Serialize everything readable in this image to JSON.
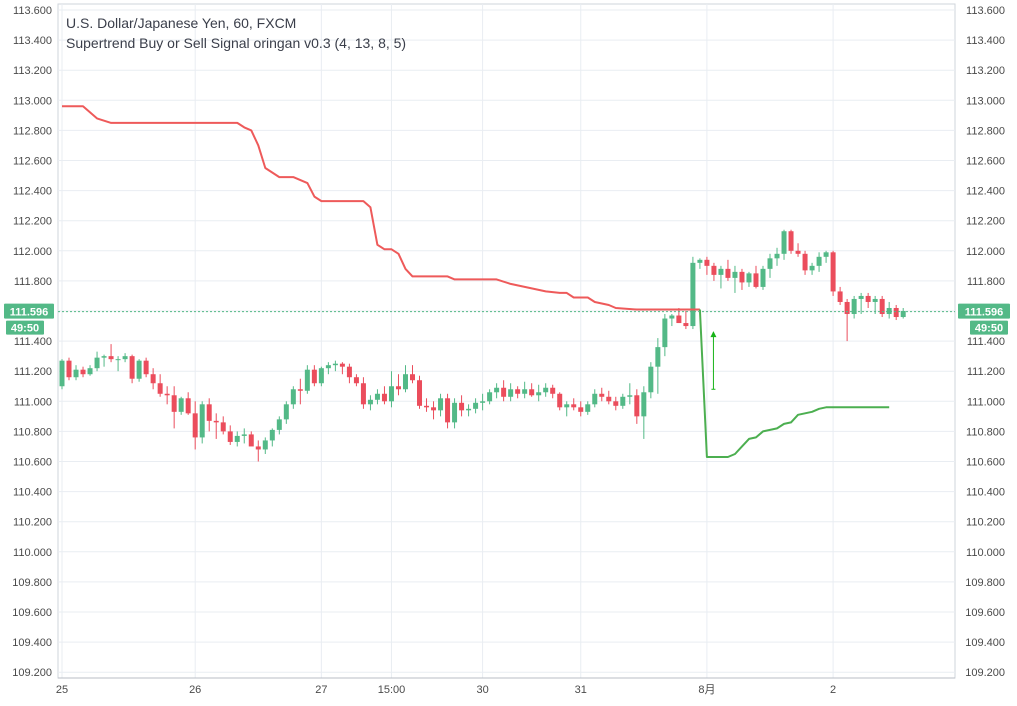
{
  "legend": {
    "symbol_line": "U.S. Dollar/Japanese Yen, 60, FXCM",
    "indicator_line": "Supertrend Buy or Sell Signal oringan v0.3 (4, 13, 8, 5)"
  },
  "price_axis_ticks": [
    "113.600",
    "113.400",
    "113.200",
    "113.000",
    "112.800",
    "112.600",
    "112.400",
    "112.200",
    "112.000",
    "111.800",
    "111.600",
    "111.400",
    "111.200",
    "111.000",
    "110.800",
    "110.600",
    "110.400",
    "110.200",
    "110.000",
    "109.800",
    "109.600",
    "109.400",
    "109.200"
  ],
  "time_axis_ticks": [
    {
      "label": "25",
      "bar": 0
    },
    {
      "label": "26",
      "bar": 19
    },
    {
      "label": "27",
      "bar": 37
    },
    {
      "label": "15:00",
      "bar": 47
    },
    {
      "label": "30",
      "bar": 60
    },
    {
      "label": "31",
      "bar": 74
    },
    {
      "label": "8月",
      "bar": 92
    },
    {
      "label": "2",
      "bar": 110
    }
  ],
  "last_price": {
    "value": "111.596",
    "countdown": "49:50"
  },
  "colors": {
    "up_candle": "#53b987",
    "down_candle": "#eb4d5c",
    "supertrend_down": "#ee5a5a",
    "supertrend_up": "#4caf50",
    "grid": "#e9edf2",
    "axis_text": "#4a4a4a",
    "last_price_badge": "#53b987",
    "signal_arrow": "#17b317"
  },
  "chart_data": {
    "type": "candlestick",
    "title": "U.S. Dollar/Japanese Yen, 60, FXCM",
    "ylim": [
      109.2,
      113.6
    ],
    "grid": true,
    "ohlc": [
      [
        111.1,
        111.28,
        111.08,
        111.27
      ],
      [
        111.27,
        111.29,
        111.14,
        111.16
      ],
      [
        111.16,
        111.24,
        111.14,
        111.21
      ],
      [
        111.21,
        111.23,
        111.16,
        111.18
      ],
      [
        111.18,
        111.24,
        111.17,
        111.22
      ],
      [
        111.22,
        111.33,
        111.2,
        111.29
      ],
      [
        111.29,
        111.31,
        111.23,
        111.3
      ],
      [
        111.3,
        111.38,
        111.26,
        111.28
      ],
      [
        111.28,
        111.3,
        111.2,
        111.28
      ],
      [
        111.28,
        111.32,
        111.26,
        111.3
      ],
      [
        111.3,
        111.31,
        111.12,
        111.15
      ],
      [
        111.15,
        111.28,
        111.13,
        111.27
      ],
      [
        111.27,
        111.29,
        111.16,
        111.18
      ],
      [
        111.18,
        111.22,
        111.08,
        111.12
      ],
      [
        111.12,
        111.18,
        111.03,
        111.05
      ],
      [
        111.05,
        111.1,
        110.98,
        111.04
      ],
      [
        111.04,
        111.1,
        110.82,
        110.93
      ],
      [
        110.93,
        111.03,
        110.91,
        111.02
      ],
      [
        111.02,
        111.06,
        110.91,
        110.92
      ],
      [
        110.92,
        111.0,
        110.68,
        110.76
      ],
      [
        110.76,
        111.0,
        110.72,
        110.98
      ],
      [
        110.98,
        111.02,
        110.8,
        110.87
      ],
      [
        110.87,
        110.92,
        110.75,
        110.86
      ],
      [
        110.86,
        110.9,
        110.78,
        110.8
      ],
      [
        110.8,
        110.84,
        110.71,
        110.73
      ],
      [
        110.73,
        110.8,
        110.7,
        110.77
      ],
      [
        110.77,
        110.82,
        110.72,
        110.78
      ],
      [
        110.78,
        110.8,
        110.71,
        110.7
      ],
      [
        110.7,
        110.74,
        110.6,
        110.68
      ],
      [
        110.68,
        110.76,
        110.65,
        110.74
      ],
      [
        110.74,
        110.82,
        110.7,
        110.81
      ],
      [
        110.81,
        110.9,
        110.78,
        110.88
      ],
      [
        110.88,
        111.0,
        110.85,
        110.98
      ],
      [
        110.98,
        111.1,
        110.95,
        111.08
      ],
      [
        111.08,
        111.15,
        110.98,
        111.07
      ],
      [
        111.07,
        111.24,
        111.05,
        111.21
      ],
      [
        111.21,
        111.24,
        111.1,
        111.12
      ],
      [
        111.12,
        111.23,
        111.1,
        111.22
      ],
      [
        111.22,
        111.26,
        111.18,
        111.24
      ],
      [
        111.24,
        111.27,
        111.2,
        111.25
      ],
      [
        111.25,
        111.26,
        111.18,
        111.23
      ],
      [
        111.23,
        111.25,
        111.12,
        111.16
      ],
      [
        111.16,
        111.18,
        111.1,
        111.12
      ],
      [
        111.12,
        111.16,
        110.95,
        110.98
      ],
      [
        110.98,
        111.04,
        110.94,
        111.01
      ],
      [
        111.01,
        111.08,
        110.98,
        111.05
      ],
      [
        111.05,
        111.1,
        110.98,
        111.0
      ],
      [
        111.0,
        111.2,
        110.96,
        111.1
      ],
      [
        111.1,
        111.18,
        111.04,
        111.08
      ],
      [
        111.08,
        111.24,
        111.06,
        111.18
      ],
      [
        111.18,
        111.24,
        111.12,
        111.14
      ],
      [
        111.14,
        111.17,
        110.95,
        110.97
      ],
      [
        110.97,
        111.02,
        110.93,
        110.96
      ],
      [
        110.96,
        111.0,
        110.88,
        110.94
      ],
      [
        110.94,
        111.05,
        110.9,
        111.02
      ],
      [
        111.02,
        111.05,
        110.82,
        110.86
      ],
      [
        110.86,
        111.02,
        110.82,
        110.99
      ],
      [
        110.99,
        111.04,
        110.9,
        110.94
      ],
      [
        110.94,
        110.98,
        110.9,
        110.95
      ],
      [
        110.95,
        111.02,
        110.92,
        110.99
      ],
      [
        110.99,
        111.05,
        110.94,
        111.0
      ],
      [
        111.0,
        111.08,
        110.98,
        111.06
      ],
      [
        111.06,
        111.12,
        111.02,
        111.09
      ],
      [
        111.09,
        111.14,
        111.0,
        111.03
      ],
      [
        111.03,
        111.12,
        111.0,
        111.08
      ],
      [
        111.08,
        111.1,
        111.02,
        111.05
      ],
      [
        111.05,
        111.13,
        111.02,
        111.08
      ],
      [
        111.08,
        111.12,
        111.03,
        111.04
      ],
      [
        111.04,
        111.11,
        111.0,
        111.06
      ],
      [
        111.06,
        111.12,
        111.03,
        111.09
      ],
      [
        111.09,
        111.11,
        111.02,
        111.05
      ],
      [
        111.05,
        111.06,
        110.94,
        110.96
      ],
      [
        110.96,
        111.0,
        110.9,
        110.98
      ],
      [
        110.98,
        111.02,
        110.94,
        110.96
      ],
      [
        110.96,
        111.0,
        110.9,
        110.93
      ],
      [
        110.93,
        111.0,
        110.91,
        110.98
      ],
      [
        110.98,
        111.08,
        110.96,
        111.05
      ],
      [
        111.05,
        111.09,
        111.0,
        111.03
      ],
      [
        111.03,
        111.07,
        110.98,
        111.0
      ],
      [
        111.0,
        111.03,
        110.94,
        110.97
      ],
      [
        110.97,
        111.05,
        110.95,
        111.03
      ],
      [
        111.03,
        111.12,
        110.98,
        111.04
      ],
      [
        111.04,
        111.08,
        110.85,
        110.9
      ],
      [
        110.9,
        111.1,
        110.75,
        111.06
      ],
      [
        111.06,
        111.26,
        111.02,
        111.23
      ],
      [
        111.23,
        111.42,
        111.05,
        111.36
      ],
      [
        111.36,
        111.58,
        111.3,
        111.55
      ],
      [
        111.55,
        111.58,
        111.5,
        111.57
      ],
      [
        111.57,
        111.62,
        111.52,
        111.52
      ],
      [
        111.52,
        111.6,
        111.48,
        111.5
      ],
      [
        111.5,
        111.96,
        111.48,
        111.92
      ],
      [
        111.92,
        111.95,
        111.88,
        111.94
      ],
      [
        111.94,
        111.96,
        111.84,
        111.9
      ],
      [
        111.9,
        111.92,
        111.8,
        111.84
      ],
      [
        111.84,
        111.9,
        111.75,
        111.88
      ],
      [
        111.88,
        111.94,
        111.8,
        111.82
      ],
      [
        111.82,
        111.9,
        111.72,
        111.86
      ],
      [
        111.86,
        111.88,
        111.74,
        111.79
      ],
      [
        111.79,
        111.86,
        111.76,
        111.85
      ],
      [
        111.85,
        111.9,
        111.75,
        111.76
      ],
      [
        111.76,
        111.9,
        111.74,
        111.88
      ],
      [
        111.88,
        111.98,
        111.82,
        111.95
      ],
      [
        111.95,
        112.02,
        111.9,
        111.98
      ],
      [
        111.98,
        112.14,
        111.94,
        112.13
      ],
      [
        112.13,
        112.14,
        111.98,
        112.0
      ],
      [
        112.0,
        112.05,
        111.96,
        111.98
      ],
      [
        111.98,
        112.0,
        111.84,
        111.87
      ],
      [
        111.87,
        111.92,
        111.84,
        111.9
      ],
      [
        111.9,
        111.99,
        111.86,
        111.96
      ],
      [
        111.96,
        112.0,
        111.92,
        111.99
      ],
      [
        111.99,
        112.0,
        111.7,
        111.73
      ],
      [
        111.73,
        111.76,
        111.64,
        111.66
      ],
      [
        111.66,
        111.68,
        111.4,
        111.58
      ],
      [
        111.58,
        111.7,
        111.55,
        111.68
      ],
      [
        111.68,
        111.72,
        111.58,
        111.7
      ],
      [
        111.7,
        111.72,
        111.62,
        111.66
      ],
      [
        111.66,
        111.7,
        111.58,
        111.68
      ],
      [
        111.68,
        111.7,
        111.56,
        111.58
      ],
      [
        111.58,
        111.66,
        111.55,
        111.62
      ],
      [
        111.62,
        111.64,
        111.54,
        111.56
      ],
      [
        111.56,
        111.62,
        111.55,
        111.6
      ]
    ],
    "series": [
      {
        "values": [
          [
            0,
            112.96
          ],
          [
            3,
            112.96
          ],
          [
            5,
            112.88
          ],
          [
            7,
            112.85
          ],
          [
            10,
            112.85
          ],
          [
            15,
            112.85
          ],
          [
            20,
            112.85
          ],
          [
            25,
            112.85
          ],
          [
            26,
            112.82
          ],
          [
            27,
            112.8
          ],
          [
            28,
            112.7
          ],
          [
            29,
            112.55
          ],
          [
            31,
            112.49
          ],
          [
            33,
            112.49
          ],
          [
            35,
            112.45
          ],
          [
            36,
            112.36
          ],
          [
            37,
            112.33
          ],
          [
            39,
            112.33
          ],
          [
            43,
            112.33
          ],
          [
            44,
            112.29
          ],
          [
            45,
            112.04
          ],
          [
            46,
            112.01
          ],
          [
            47,
            112.01
          ],
          [
            48,
            111.98
          ],
          [
            49,
            111.88
          ],
          [
            50,
            111.83
          ],
          [
            53,
            111.83
          ],
          [
            55,
            111.83
          ],
          [
            56,
            111.81
          ],
          [
            59,
            111.81
          ],
          [
            62,
            111.81
          ],
          [
            64,
            111.78
          ],
          [
            65,
            111.77
          ],
          [
            67,
            111.75
          ],
          [
            69,
            111.73
          ],
          [
            71,
            111.72
          ],
          [
            72,
            111.72
          ],
          [
            73,
            111.69
          ],
          [
            75,
            111.69
          ],
          [
            76,
            111.66
          ],
          [
            78,
            111.64
          ],
          [
            79,
            111.62
          ],
          [
            82,
            111.61
          ],
          [
            85,
            111.61
          ],
          [
            87,
            111.61
          ],
          [
            88,
            111.61
          ],
          [
            90,
            111.61
          ],
          [
            91,
            111.61
          ]
        ]
      },
      {
        "values": [
          [
            91,
            111.61
          ],
          [
            92,
            110.63
          ],
          [
            93,
            110.63
          ],
          [
            94,
            110.63
          ],
          [
            95,
            110.63
          ],
          [
            96,
            110.65
          ],
          [
            97,
            110.7
          ],
          [
            98,
            110.75
          ],
          [
            99,
            110.76
          ],
          [
            100,
            110.8
          ],
          [
            101,
            110.81
          ],
          [
            102,
            110.82
          ],
          [
            103,
            110.85
          ],
          [
            104,
            110.86
          ],
          [
            105,
            110.91
          ],
          [
            106,
            110.92
          ],
          [
            107,
            110.93
          ],
          [
            108,
            110.95
          ],
          [
            109,
            110.96
          ],
          [
            110,
            110.96
          ],
          [
            111,
            110.96
          ],
          [
            112,
            110.96
          ],
          [
            113,
            110.96
          ],
          [
            114,
            110.96
          ],
          [
            115,
            110.96
          ],
          [
            116,
            110.96
          ],
          [
            117,
            110.96
          ],
          [
            118,
            110.96
          ]
        ]
      }
    ],
    "signal": {
      "bar": 93,
      "value": 111.46
    }
  }
}
